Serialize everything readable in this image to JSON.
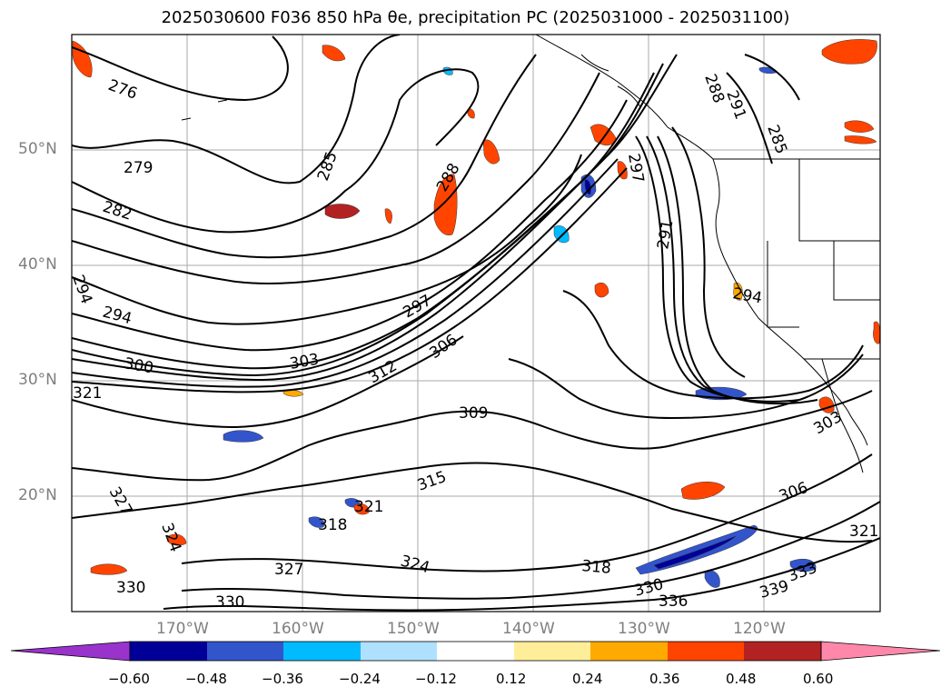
{
  "title": "2025030600 F036 850 hPa θe, precipitation PC (2025031000 - 2025031100)",
  "colors": {
    "contour": "#000000",
    "grid": "#aaaaaa",
    "coast": "#000000",
    "tick_label": "#7f7f7f"
  },
  "map": {
    "lat_labels": [
      "50°N",
      "40°N",
      "30°N",
      "20°N"
    ],
    "lon_labels": [
      "170°W",
      "160°W",
      "150°W",
      "140°W",
      "130°W",
      "120°W"
    ],
    "contour_labels": [
      "276",
      "279",
      "282",
      "285",
      "288",
      "294",
      "294",
      "297",
      "300",
      "303",
      "306",
      "309",
      "312",
      "315",
      "318",
      "318",
      "321",
      "321",
      "321",
      "324",
      "324",
      "327",
      "327",
      "330",
      "330",
      "330",
      "333",
      "336",
      "339",
      "291",
      "297",
      "303",
      "306",
      "285",
      "288",
      "291",
      "294"
    ]
  },
  "colorbar": {
    "colors": [
      "#9933cc",
      "#000099",
      "#3355cc",
      "#00bbff",
      "#b0e0ff",
      "#ffffff",
      "#ffee99",
      "#ffaa00",
      "#ff4400",
      "#b22222",
      "#ff88aa"
    ],
    "tick_labels": [
      "−0.60",
      "−0.48",
      "−0.36",
      "−0.24",
      "−0.12",
      "0.12",
      "0.24",
      "0.36",
      "0.48",
      "0.60"
    ]
  }
}
